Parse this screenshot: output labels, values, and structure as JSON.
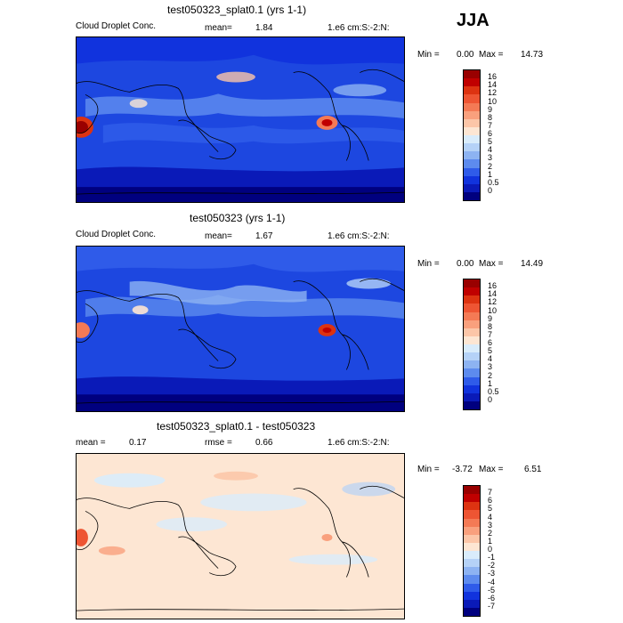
{
  "season": "JJA",
  "panels": [
    {
      "title": "test050323_splat0.1 (yrs 1-1)",
      "left_label": "Cloud Droplet Conc.",
      "mean_label": "mean=",
      "mean_value": "1.84",
      "units": "1.e6 cm:S:-2:N:",
      "min_label": "Min =",
      "min_value": "0.00",
      "max_label": "Max =",
      "max_value": "14.73",
      "levels": [
        "16",
        "14",
        "12",
        "10",
        "9",
        "8",
        "7",
        "6",
        "5",
        "4",
        "3",
        "2",
        "1",
        "0.5",
        "0"
      ],
      "colors": [
        "#990000",
        "#c00000",
        "#dd3311",
        "#ee5533",
        "#f47a55",
        "#f9a07d",
        "#fcc6a8",
        "#fde6d3",
        "#d9ecfb",
        "#b5d2f7",
        "#8db3f2",
        "#5d8bee",
        "#2f5be9",
        "#1133dd",
        "#0a1ab8",
        "#00007f"
      ]
    },
    {
      "title": "test050323 (yrs 1-1)",
      "left_label": "Cloud Droplet Conc.",
      "mean_label": "mean=",
      "mean_value": "1.67",
      "units": "1.e6 cm:S:-2:N:",
      "min_label": "Min =",
      "min_value": "0.00",
      "max_label": "Max =",
      "max_value": "14.49",
      "levels": [
        "16",
        "14",
        "12",
        "10",
        "9",
        "8",
        "7",
        "6",
        "5",
        "4",
        "3",
        "2",
        "1",
        "0.5",
        "0"
      ],
      "colors": [
        "#990000",
        "#c00000",
        "#dd3311",
        "#ee5533",
        "#f47a55",
        "#f9a07d",
        "#fcc6a8",
        "#fde6d3",
        "#d9ecfb",
        "#b5d2f7",
        "#8db3f2",
        "#5d8bee",
        "#2f5be9",
        "#1133dd",
        "#0a1ab8",
        "#00007f"
      ]
    },
    {
      "title": "test050323_splat0.1 - test050323",
      "mean_label": "mean =",
      "mean_value": "0.17",
      "rmse_label": "rmse =",
      "rmse_value": "0.66",
      "units": "1.e6 cm:S:-2:N:",
      "min_label": "Min =",
      "min_value": "-3.72",
      "max_label": "Max =",
      "max_value": "6.51",
      "levels": [
        "7",
        "6",
        "5",
        "4",
        "3",
        "2",
        "1",
        "0",
        "-1",
        "-2",
        "-3",
        "-4",
        "-5",
        "-6",
        "-7"
      ],
      "colors": [
        "#990000",
        "#c00000",
        "#dd3311",
        "#ee5533",
        "#f47a55",
        "#f9a07d",
        "#fcc6a8",
        "#fde6d3",
        "#d9ecfb",
        "#b5d2f7",
        "#8db3f2",
        "#5d8bee",
        "#2f5be9",
        "#1133dd",
        "#0a1ab8",
        "#00007f"
      ]
    }
  ]
}
